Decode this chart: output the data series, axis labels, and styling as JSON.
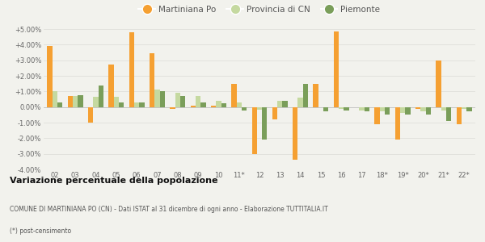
{
  "years": [
    "02",
    "03",
    "04",
    "05",
    "06",
    "07",
    "08",
    "09",
    "10",
    "11*",
    "12",
    "13",
    "14",
    "15",
    "16",
    "17",
    "18*",
    "19*",
    "20*",
    "21*",
    "22*"
  ],
  "martiniana_po": [
    3.9,
    0.7,
    -1.0,
    2.7,
    4.8,
    3.45,
    -0.1,
    0.1,
    0.1,
    1.5,
    -3.0,
    -0.8,
    -3.4,
    1.5,
    4.85,
    0.0,
    -1.1,
    -2.1,
    -0.1,
    3.0,
    -1.1
  ],
  "provincia_cn": [
    1.0,
    0.7,
    0.65,
    0.65,
    0.3,
    1.1,
    0.9,
    0.7,
    0.4,
    0.3,
    -0.15,
    0.4,
    0.6,
    0.0,
    -0.1,
    -0.2,
    -0.3,
    -0.4,
    -0.3,
    -0.2,
    -0.1
  ],
  "piemonte": [
    0.3,
    0.75,
    1.4,
    0.3,
    0.3,
    1.0,
    0.7,
    0.3,
    0.25,
    -0.2,
    -2.1,
    0.4,
    1.5,
    -0.25,
    -0.2,
    -0.3,
    -0.5,
    -0.5,
    -0.5,
    -0.9,
    -0.3
  ],
  "color_martiniana": "#f5a032",
  "color_provincia": "#c5d9a0",
  "color_piemonte": "#7a9e5a",
  "ylim": [
    -4.0,
    5.0
  ],
  "yticks": [
    -4.0,
    -3.0,
    -2.0,
    -1.0,
    0.0,
    1.0,
    2.0,
    3.0,
    4.0,
    5.0
  ],
  "ytick_labels": [
    "-4.00%",
    "-3.00%",
    "-2.00%",
    "-1.00%",
    "0.00%",
    "+1.00%",
    "+2.00%",
    "+3.00%",
    "+4.00%",
    "+5.00%"
  ],
  "title": "Variazione percentuale della popolazione",
  "subtitle": "COMUNE DI MARTINIANA PO (CN) - Dati ISTAT al 31 dicembre di ogni anno - Elaborazione TUTTITALIA.IT",
  "footnote": "(*) post-censimento",
  "legend_labels": [
    "Martiniana Po",
    "Provincia di CN",
    "Piemonte"
  ],
  "bg_color": "#f2f2ed",
  "plot_bg_color": "#f2f2ed",
  "grid_color": "#e0e0da"
}
